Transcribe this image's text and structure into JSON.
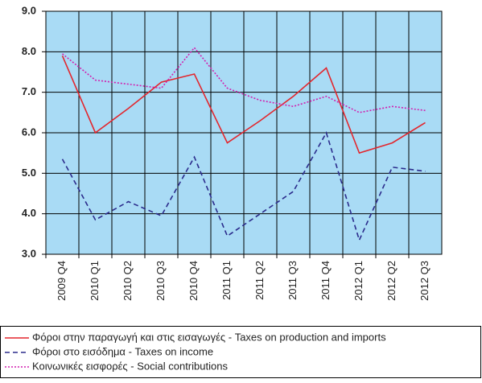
{
  "chart_data": {
    "type": "line",
    "categories": [
      "2009 Q4",
      "2010 Q1",
      "2010 Q2",
      "2010 Q3",
      "2010 Q4",
      "2011 Q1",
      "2011 Q2",
      "2011 Q3",
      "2011 Q4",
      "2012 Q1",
      "2012 Q2",
      "2012 Q3"
    ],
    "series": [
      {
        "name": "Φόροι στην παραγωγή και στις εισαγωγές - Taxes on production and imports",
        "color": "#e3262d",
        "dash": "solid",
        "values": [
          7.9,
          6.0,
          6.6,
          7.25,
          7.45,
          5.75,
          6.3,
          6.9,
          7.6,
          5.5,
          5.75,
          6.25
        ]
      },
      {
        "name": "Φόροι στο εισόδημα - Taxes on income",
        "color": "#2b2b8c",
        "dash": "dashed",
        "values": [
          5.35,
          3.85,
          4.3,
          3.95,
          5.4,
          3.45,
          4.0,
          4.55,
          6.0,
          3.35,
          5.15,
          5.05
        ]
      },
      {
        "name": "Κοινωνικές εισφορές - Social contributions",
        "color": "#d21fae",
        "dash": "dotted",
        "values": [
          7.95,
          7.3,
          7.2,
          7.1,
          8.1,
          7.1,
          6.8,
          6.65,
          6.9,
          6.5,
          6.65,
          6.55
        ]
      }
    ],
    "ylim": [
      3,
      9
    ],
    "yticks": [
      {
        "value": 3,
        "label": "3.0"
      },
      {
        "value": 4,
        "label": "4.0"
      },
      {
        "value": 5,
        "label": "5.0"
      },
      {
        "value": 6,
        "label": "6.0"
      },
      {
        "value": 7,
        "label": "7.0"
      },
      {
        "value": 8,
        "label": "8.0"
      },
      {
        "value": 9,
        "label": "9.0"
      }
    ],
    "grid": true,
    "background": "#a9dbf5",
    "legend": "bottom"
  }
}
